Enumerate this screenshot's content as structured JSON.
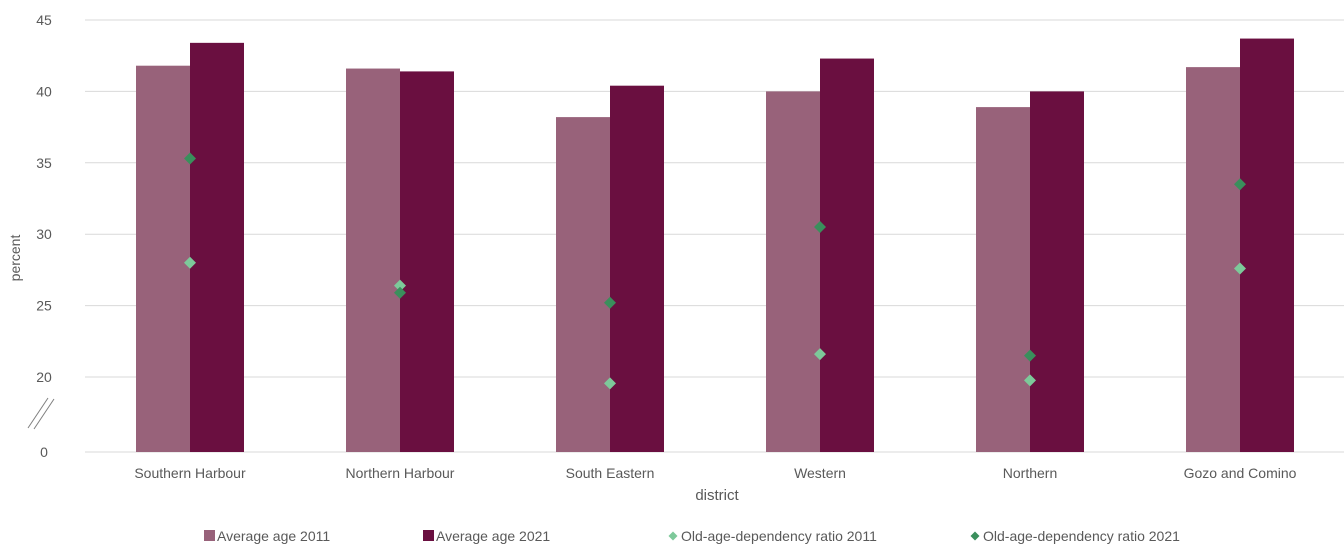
{
  "chart_data": {
    "type": "bar",
    "title": "",
    "xlabel": "district",
    "ylabel": "percent",
    "categories": [
      "Southern Harbour",
      "Northern Harbour",
      "South Eastern",
      "Western",
      "Northern",
      "Gozo and Comino"
    ],
    "y_ticks": [
      "0",
      "20",
      "25",
      "30",
      "35",
      "40",
      "45"
    ],
    "y_axis_break": "0–20 (broken axis)",
    "ylim": [
      0,
      45
    ],
    "grid": true,
    "legend_position": "bottom",
    "series": [
      {
        "name": "Average age 2011",
        "kind": "bar",
        "color": "#98627A",
        "values": [
          41.8,
          41.6,
          38.2,
          40.0,
          38.9,
          41.7
        ]
      },
      {
        "name": "Average age 2021",
        "kind": "bar",
        "color": "#6A0F40",
        "values": [
          43.4,
          41.4,
          40.4,
          42.3,
          40.0,
          43.7
        ]
      },
      {
        "name": "Old-age-dependency ratio 2011",
        "kind": "marker",
        "color": "#7DC99A",
        "values": [
          28.0,
          26.4,
          18.3,
          21.6,
          19.1,
          27.6
        ]
      },
      {
        "name": "Old-age-dependency ratio 2021",
        "kind": "marker",
        "color": "#3A8F5C",
        "values": [
          35.3,
          25.9,
          25.2,
          30.5,
          21.5,
          33.5
        ]
      }
    ]
  }
}
